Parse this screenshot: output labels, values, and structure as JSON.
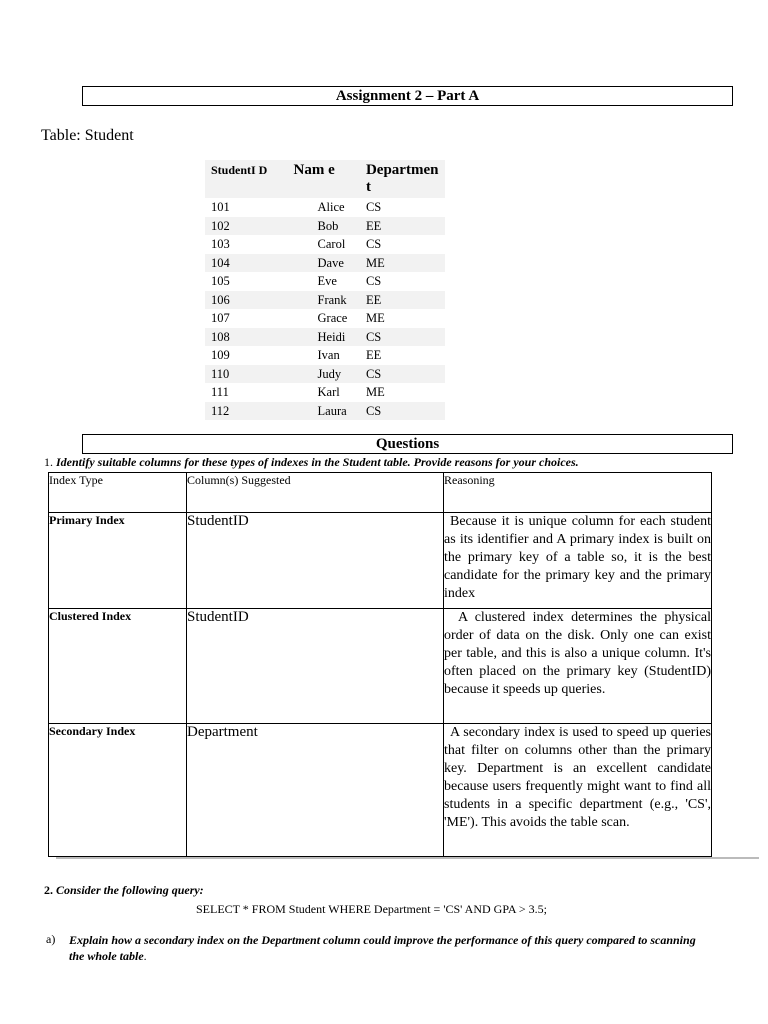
{
  "title": "Assignment 2 – Part A",
  "table_label": "Table: Student",
  "student_table": {
    "headers": [
      "StudentI D",
      "Nam e",
      "Departmen t"
    ],
    "rows": [
      [
        "101",
        "Alice",
        "CS"
      ],
      [
        "102",
        "Bob",
        "EE"
      ],
      [
        "103",
        "Carol",
        "CS"
      ],
      [
        "104",
        "Dave",
        "ME"
      ],
      [
        "105",
        "Eve",
        "CS"
      ],
      [
        "106",
        "Frank",
        "EE"
      ],
      [
        "107",
        "Grace",
        "ME"
      ],
      [
        "108",
        "Heidi",
        "CS"
      ],
      [
        "109",
        "Ivan",
        "EE"
      ],
      [
        "110",
        "Judy",
        "CS"
      ],
      [
        "111",
        "Karl",
        "ME"
      ],
      [
        "112",
        "Laura",
        "CS"
      ]
    ]
  },
  "questions_title": "Questions",
  "q1": {
    "number": "1.",
    "text": "Identify suitable columns for these types of indexes in the Student table. Provide reasons for your choices."
  },
  "index_table": {
    "headers": [
      "Index Type",
      "Column(s) Suggested",
      "Reasoning"
    ],
    "rows": [
      {
        "type": "Primary Index",
        "column": "StudentID",
        "reason": "Because it is unique column for each student as its identifier and A primary index is built on the primary key of a table so, it is the best candidate for the primary key and the primary index"
      },
      {
        "type": "Clustered Index",
        "column": "StudentID",
        "reason": "A clustered index determines the physical order of data on the disk. Only one can exist per table, and this is also a unique column. It's often placed on the primary key (StudentID) because it speeds up queries."
      },
      {
        "type": "Secondary Index",
        "column": "Department",
        "reason": "A secondary index is used to speed up queries that filter on columns other than the primary key. Department is an excellent candidate because users frequently might want to find all students in a specific department (e.g., 'CS', 'ME'). This avoids the table scan."
      }
    ]
  },
  "q2": {
    "number": "2.",
    "text": "Consider the following query:",
    "query": "SELECT * FROM Student WHERE Department = 'CS' AND GPA > 3.5;"
  },
  "q2a": {
    "label": "a)",
    "text": "Explain how a secondary index on the Department column could improve the performance of this query compared to scanning the whole table",
    "end": "."
  }
}
